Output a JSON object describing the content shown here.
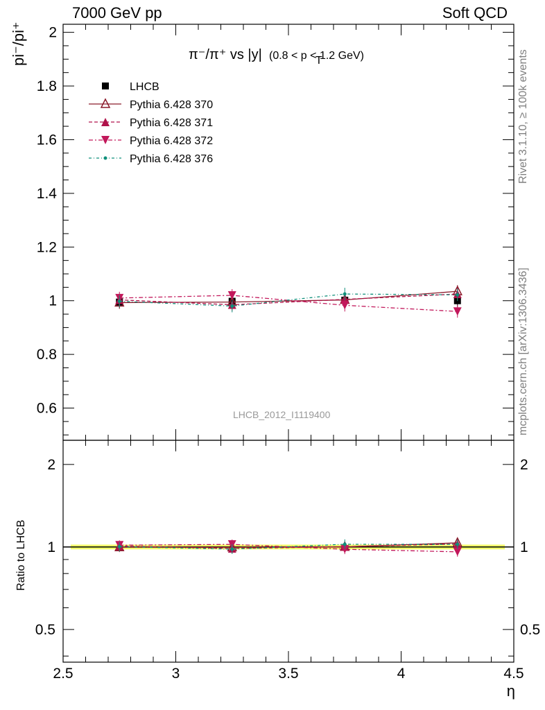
{
  "header": {
    "left": "7000 GeV pp",
    "right": "Soft QCD"
  },
  "side_text": {
    "rivet": "Rivet 3.1.10, ≥ 100k events",
    "source": "mcplots.cern.ch [arXiv:1306.3436]"
  },
  "watermark": "LHCB_2012_I1119400",
  "colors": {
    "lhcb": "#000000",
    "p370": "#8b1a2b",
    "p371": "#b0124a",
    "p372": "#c2185b",
    "p376": "#0f8f7a",
    "band": "#f0ff50"
  },
  "chart_data": [
    {
      "type": "scatter",
      "title_main": "π⁻/π⁺ vs |y|",
      "title_sub": "(0.8 < p_T < 1.2 GeV)",
      "ylabel": "pi⁻/pi⁺",
      "xlim": [
        2.5,
        4.5
      ],
      "ylim": [
        0.48,
        2.03
      ],
      "yticks": [
        0.6,
        0.8,
        1,
        1.2,
        1.4,
        1.6,
        1.8,
        2
      ],
      "ytick_labels": [
        "0.6",
        "0.8",
        "1",
        "1.2",
        "1.4",
        "1.6",
        "1.8",
        "2"
      ],
      "x": [
        2.75,
        3.25,
        3.75,
        4.25
      ],
      "legend_position": "top-left",
      "series": [
        {
          "name": "LHCB",
          "values": [
            0.995,
            0.998,
            1.002,
            1.0
          ],
          "marker": "square",
          "style": "none"
        },
        {
          "name": "Pythia 6.428 370",
          "values": [
            0.993,
            0.995,
            1.003,
            1.035
          ],
          "marker": "open-triangle-up",
          "style": "solid"
        },
        {
          "name": "Pythia 6.428 371",
          "values": [
            1.003,
            0.985,
            1.005,
            1.025
          ],
          "marker": "triangle-up",
          "style": "dashed"
        },
        {
          "name": "Pythia 6.428 372",
          "values": [
            1.01,
            1.02,
            0.983,
            0.96
          ],
          "marker": "triangle-down",
          "style": "dashdot"
        },
        {
          "name": "Pythia 6.428 376",
          "values": [
            0.998,
            0.98,
            1.025,
            1.022
          ],
          "marker": "dot",
          "style": "dashdotted"
        }
      ]
    },
    {
      "type": "scatter",
      "ylabel": "Ratio to LHCB",
      "xlabel": "η",
      "xlim": [
        2.5,
        4.5
      ],
      "ylim": [
        0.38,
        2.45
      ],
      "log_y": true,
      "yticks": [
        0.5,
        1,
        2
      ],
      "ytick_labels": [
        "0.5",
        "1",
        "2"
      ],
      "xticks": [
        2.5,
        3,
        3.5,
        4,
        4.5
      ],
      "xtick_labels": [
        "2.5",
        "3",
        "3.5",
        "4",
        "4.5"
      ],
      "x": [
        2.75,
        3.25,
        3.75,
        4.25
      ],
      "series": [
        {
          "name": "Pythia 6.428 370",
          "values": [
            0.998,
            0.997,
            1.001,
            1.035
          ]
        },
        {
          "name": "Pythia 6.428 371",
          "values": [
            1.008,
            0.987,
            1.003,
            1.025
          ]
        },
        {
          "name": "Pythia 6.428 372",
          "values": [
            1.015,
            1.022,
            0.981,
            0.96
          ]
        },
        {
          "name": "Pythia 6.428 376",
          "values": [
            1.003,
            0.982,
            1.023,
            1.022
          ]
        }
      ]
    }
  ]
}
